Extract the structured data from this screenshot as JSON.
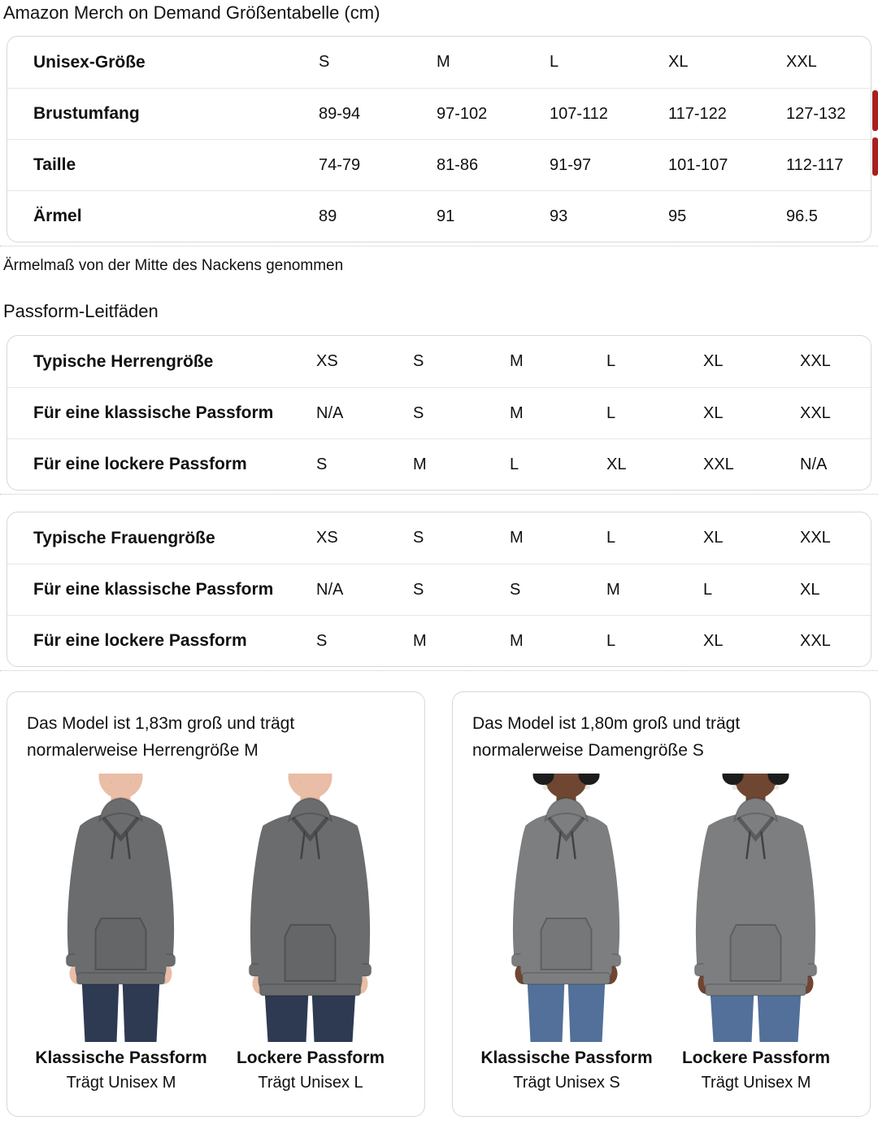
{
  "page": {
    "title": "Amazon Merch on Demand Größentabelle (cm)",
    "note": "Ärmelmaß von der Mitte des Nackens genommen",
    "fit_heading": "Passform-Leitfäden"
  },
  "size_table": {
    "rows": [
      {
        "label": "Unisex-Größe",
        "values": [
          "S",
          "M",
          "L",
          "XL",
          "XXL"
        ]
      },
      {
        "label": "Brustumfang",
        "values": [
          "89-94",
          "97-102",
          "107-112",
          "117-122",
          "127-132"
        ]
      },
      {
        "label": "Taille",
        "values": [
          "74-79",
          "81-86",
          "91-97",
          "101-107",
          "112-117"
        ]
      },
      {
        "label": "Ärmel",
        "values": [
          "89",
          "91",
          "93",
          "95",
          "96.5"
        ]
      }
    ]
  },
  "mens_fit_table": {
    "rows": [
      {
        "label": "Typische Herrengröße",
        "values": [
          "XS",
          "S",
          "M",
          "L",
          "XL",
          "XXL"
        ]
      },
      {
        "label": "Für eine klassische Passform",
        "values": [
          "N/A",
          "S",
          "M",
          "L",
          "XL",
          "XXL"
        ]
      },
      {
        "label": "Für eine lockere Passform",
        "values": [
          "S",
          "M",
          "L",
          "XL",
          "XXL",
          "N/A"
        ]
      }
    ]
  },
  "womens_fit_table": {
    "rows": [
      {
        "label": "Typische Frauengröße",
        "values": [
          "XS",
          "S",
          "M",
          "L",
          "XL",
          "XXL"
        ]
      },
      {
        "label": "Für eine klassische Passform",
        "values": [
          "N/A",
          "S",
          "S",
          "M",
          "L",
          "XL"
        ]
      },
      {
        "label": "Für eine lockere Passform",
        "values": [
          "S",
          "M",
          "M",
          "L",
          "XL",
          "XXL"
        ]
      }
    ]
  },
  "model_cards": [
    {
      "description": "Das Model ist 1,83m groß und trägt normalerweise Herrengröße M",
      "model": "male",
      "figures": [
        {
          "fit_label": "Klassische Passform",
          "size_label": "Trägt Unisex M",
          "fit": "classic"
        },
        {
          "fit_label": "Lockere Passform",
          "size_label": "Trägt Unisex L",
          "fit": "loose"
        }
      ]
    },
    {
      "description": "Das Model ist 1,80m groß und trägt normalerweise Damengröße S",
      "model": "female",
      "figures": [
        {
          "fit_label": "Klassische Passform",
          "size_label": "Trägt Unisex S",
          "fit": "classic"
        },
        {
          "fit_label": "Lockere Passform",
          "size_label": "Trägt Unisex M",
          "fit": "loose"
        }
      ]
    }
  ],
  "colors": {
    "scrollbar_accent": "#a91f1f",
    "card_border": "#d5d9d9",
    "text": "#0f1111",
    "hoodie_men": "#6a6c6e",
    "hoodie_women": "#7c7e80",
    "jeans_men": "#2e3a52",
    "jeans_women": "#527099",
    "skin_men": "#e9bda6",
    "skin_women": "#6f4631",
    "hair_women": "#1c1c1c"
  }
}
